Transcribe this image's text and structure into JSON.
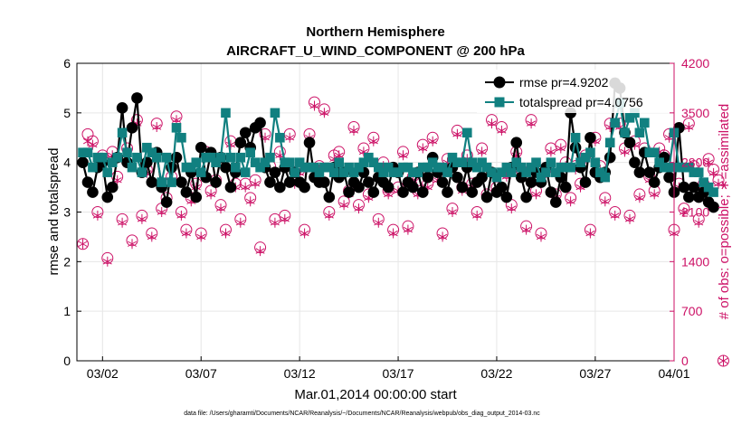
{
  "chart_data": {
    "type": "line",
    "title": "Northern Hemisphere",
    "subtitle": "AIRCRAFT_U_WIND_COMPONENT @ 200 hPa",
    "xlabel": "Mar.01,2014 00:00:00 start",
    "ylabel": "rmse and totalspread",
    "y2label": "# of obs: o=possible; ∗=assimilated",
    "footnote": "data file: /Users/gharamti/Documents/NCAR/Reanalysis/~/Documents/NCAR/Reanalysis/webpub/obs_diag_output_2014-03.nc",
    "xlim": [
      0.7,
      31.0
    ],
    "ylim": [
      0,
      6
    ],
    "y2lim": [
      0,
      4200
    ],
    "xticks": [
      {
        "label": "03/02",
        "value": 2
      },
      {
        "label": "03/07",
        "value": 7
      },
      {
        "label": "03/12",
        "value": 12
      },
      {
        "label": "03/17",
        "value": 17
      },
      {
        "label": "03/22",
        "value": 22
      },
      {
        "label": "03/27",
        "value": 27
      },
      {
        "label": "04/01",
        "value": 31
      }
    ],
    "yticks": [
      0,
      1,
      2,
      3,
      4,
      5,
      6
    ],
    "y2ticks": [
      0,
      700,
      1400,
      2100,
      2800,
      3500,
      4200
    ],
    "grid": true,
    "legend_position": "top-right",
    "x_start": 1.0,
    "x_step": 0.25,
    "series": [
      {
        "name": "rmse pr=4.9202",
        "axis": "left",
        "color": "#000000",
        "marker": "circle",
        "values": [
          4.0,
          3.6,
          3.4,
          3.9,
          4.0,
          3.3,
          3.5,
          4.1,
          5.1,
          4.0,
          4.7,
          5.3,
          3.8,
          4.0,
          3.6,
          4.2,
          3.5,
          3.2,
          3.9,
          4.1,
          3.6,
          3.4,
          3.8,
          3.3,
          4.3,
          3.7,
          4.2,
          3.6,
          4.1,
          3.9,
          3.5,
          3.8,
          4.4,
          4.6,
          4.3,
          4.7,
          4.8,
          3.9,
          3.6,
          3.8,
          3.5,
          3.9,
          3.6,
          3.8,
          3.6,
          3.5,
          4.4,
          3.7,
          3.6,
          3.6,
          3.3,
          3.9,
          3.7,
          3.8,
          3.4,
          3.6,
          3.5,
          3.8,
          3.6,
          3.4,
          3.7,
          3.6,
          3.5,
          3.9,
          3.8,
          3.4,
          3.6,
          3.5,
          3.8,
          3.4,
          3.7,
          4.1,
          3.8,
          3.6,
          3.4,
          3.9,
          3.7,
          3.5,
          3.9,
          3.4,
          3.6,
          3.7,
          3.3,
          3.8,
          3.4,
          3.5,
          3.3,
          3.9,
          4.4,
          3.7,
          3.3,
          3.6,
          3.8,
          3.6,
          3.9,
          3.4,
          3.2,
          3.7,
          3.5,
          5.0,
          4.3,
          3.9,
          3.6,
          4.5,
          3.8,
          3.7,
          3.8,
          4.1,
          5.6,
          5.5,
          4.6,
          4.4,
          4.0,
          3.8,
          4.2,
          3.8,
          3.6,
          3.9,
          4.1,
          3.7,
          3.4,
          4.7,
          3.5,
          3.3,
          3.5,
          3.3,
          3.4,
          3.2,
          3.1
        ]
      },
      {
        "name": "totalspread pr=4.0756",
        "axis": "left",
        "color": "#118080",
        "marker": "square",
        "values": [
          4.2,
          4.2,
          3.9,
          4.1,
          4.1,
          3.8,
          4.0,
          4.1,
          4.6,
          4.2,
          3.9,
          4.1,
          3.8,
          4.3,
          4.2,
          4.1,
          3.6,
          4.1,
          3.6,
          4.7,
          4.5,
          3.9,
          3.9,
          4.0,
          3.8,
          4.1,
          4.1,
          4.0,
          4.1,
          5.0,
          4.1,
          3.9,
          4.1,
          3.8,
          4.2,
          4.0,
          3.9,
          4.0,
          4.1,
          5.0,
          4.5,
          4.0,
          4.0,
          3.8,
          4.0,
          3.9,
          3.9,
          3.9,
          3.8,
          3.9,
          3.9,
          3.8,
          4.0,
          3.8,
          3.9,
          3.8,
          3.9,
          4.0,
          4.1,
          4.0,
          3.9,
          3.8,
          3.9,
          3.8,
          3.8,
          3.9,
          3.9,
          3.8,
          3.8,
          3.9,
          3.9,
          4.0,
          3.9,
          3.9,
          3.8,
          4.1,
          4.0,
          4.0,
          4.6,
          4.0,
          3.9,
          4.0,
          3.9,
          3.8,
          3.7,
          3.8,
          3.9,
          3.8,
          4.0,
          3.9,
          3.8,
          3.9,
          4.0,
          3.7,
          3.8,
          4.0,
          3.8,
          3.9,
          3.9,
          3.9,
          4.5,
          4.0,
          4.1,
          4.2,
          4.0,
          3.8,
          3.7,
          4.4,
          4.8,
          5.2,
          4.6,
          4.9,
          5.0,
          4.6,
          4.8,
          4.2,
          4.2,
          4.0,
          3.9,
          3.9,
          4.6,
          3.9,
          3.9,
          3.9,
          3.8,
          3.8,
          3.6,
          3.5,
          3.4
        ]
      },
      {
        "name": "obs possible",
        "axis": "right",
        "color": "#cc1166",
        "marker": "circle-open",
        "values": [
          1650,
          3200,
          3100,
          2100,
          2900,
          1450,
          2950,
          2600,
          2000,
          3000,
          1700,
          3400,
          2050,
          2700,
          1800,
          3350,
          2150,
          2300,
          2600,
          3450,
          2100,
          1850,
          2300,
          2500,
          1800,
          2950,
          2400,
          2550,
          2200,
          1850,
          3100,
          2500,
          2000,
          2500,
          2300,
          2550,
          1600,
          3200,
          2750,
          2000,
          2950,
          2050,
          3200,
          2550,
          2700,
          1850,
          3200,
          3650,
          2750,
          3550,
          2100,
          2900,
          2950,
          2250,
          2400,
          3300,
          2200,
          3000,
          2350,
          3150,
          2000,
          2800,
          2400,
          1850,
          2450,
          2950,
          1900,
          2600,
          2400,
          3050,
          2500,
          3150,
          2600,
          1800,
          2850,
          2150,
          3250,
          2450,
          2900,
          2500,
          2100,
          3000,
          2350,
          3400,
          2450,
          3300,
          2650,
          2200,
          2950,
          2700,
          1900,
          3400,
          2400,
          1800,
          2700,
          3000,
          2350,
          3050,
          2800,
          2300,
          2750,
          2500,
          2900,
          1850,
          3150,
          2750,
          2300,
          3350,
          2100,
          3350,
          3000,
          2050,
          3100,
          2350,
          3000,
          2600,
          2400,
          3000,
          2900,
          3200,
          1850,
          2500,
          2150,
          3350,
          2750,
          2000,
          2500,
          2850,
          2700,
          2550,
          0
        ]
      },
      {
        "name": "obs assimilated",
        "axis": "right",
        "color": "#cc1166",
        "marker": "asterisk",
        "values": [
          1650,
          3100,
          3050,
          2050,
          2850,
          1400,
          2900,
          2550,
          1950,
          2950,
          1650,
          3350,
          2000,
          2650,
          1750,
          3300,
          2100,
          2250,
          2550,
          3400,
          2050,
          1800,
          2250,
          2450,
          1750,
          2900,
          2350,
          2500,
          2150,
          1800,
          3050,
          2450,
          1950,
          2450,
          2250,
          2500,
          1550,
          3150,
          2700,
          1950,
          2900,
          2000,
          3150,
          2500,
          2650,
          1800,
          3150,
          3600,
          2700,
          3500,
          2050,
          2850,
          2900,
          2200,
          2350,
          3250,
          2150,
          2950,
          2300,
          3100,
          1950,
          2750,
          2350,
          1800,
          2400,
          2900,
          1850,
          2550,
          2350,
          3000,
          2450,
          3100,
          2550,
          1750,
          2800,
          2100,
          3200,
          2400,
          2850,
          2450,
          2050,
          2950,
          2300,
          3350,
          2400,
          3250,
          2600,
          2150,
          2900,
          2650,
          1850,
          3350,
          2350,
          1750,
          2650,
          2950,
          2300,
          3000,
          2750,
          2250,
          2700,
          2450,
          2850,
          1800,
          3100,
          2700,
          2250,
          3300,
          2050,
          3300,
          2950,
          2000,
          3050,
          2300,
          2950,
          2550,
          2350,
          2950,
          2850,
          3150,
          1800,
          2450,
          2100,
          3300,
          2700,
          1950,
          2450,
          2800,
          2650,
          2500,
          0
        ]
      }
    ]
  }
}
